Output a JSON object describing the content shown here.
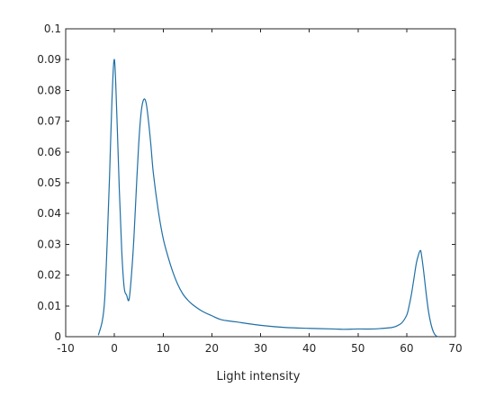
{
  "chart_data": {
    "type": "line",
    "title": "",
    "xlabel": "Light intensity",
    "ylabel": "",
    "xlim": [
      -10,
      70
    ],
    "ylim": [
      0,
      0.1
    ],
    "xticks": [
      -10,
      0,
      10,
      20,
      30,
      40,
      50,
      60,
      70
    ],
    "yticks": [
      0,
      0.01,
      0.02,
      0.03,
      0.04,
      0.05,
      0.06,
      0.07,
      0.08,
      0.09,
      0.1
    ],
    "grid": false,
    "legend": "none",
    "series": [
      {
        "color": "#1f6fa5",
        "x": [
          -3.3,
          -2.5,
          -2,
          -1.5,
          -1,
          -0.5,
          0,
          0.5,
          1,
          1.5,
          2,
          2.5,
          3,
          3.5,
          4,
          4.5,
          5,
          5.5,
          6,
          6.5,
          7,
          7.5,
          8,
          9,
          10,
          11,
          12,
          13,
          14,
          15,
          16,
          18,
          20,
          22,
          25,
          30,
          35,
          40,
          45,
          47,
          50,
          53,
          55,
          57,
          58,
          59,
          60,
          60.5,
          61,
          61.5,
          62,
          62.5,
          62.8,
          63,
          63.5,
          64,
          64.5,
          65,
          65.5,
          66,
          66.5
        ],
        "y": [
          0.0005,
          0.005,
          0.012,
          0.03,
          0.052,
          0.077,
          0.09,
          0.072,
          0.048,
          0.028,
          0.016,
          0.0135,
          0.012,
          0.02,
          0.032,
          0.048,
          0.063,
          0.073,
          0.077,
          0.076,
          0.07,
          0.062,
          0.053,
          0.041,
          0.032,
          0.026,
          0.021,
          0.017,
          0.014,
          0.012,
          0.0105,
          0.0083,
          0.0068,
          0.0055,
          0.0048,
          0.0037,
          0.003,
          0.0027,
          0.0025,
          0.0024,
          0.0025,
          0.0025,
          0.0027,
          0.003,
          0.0035,
          0.0045,
          0.007,
          0.01,
          0.014,
          0.019,
          0.024,
          0.027,
          0.028,
          0.027,
          0.021,
          0.014,
          0.008,
          0.004,
          0.0015,
          0.0003,
          0
        ]
      }
    ]
  }
}
